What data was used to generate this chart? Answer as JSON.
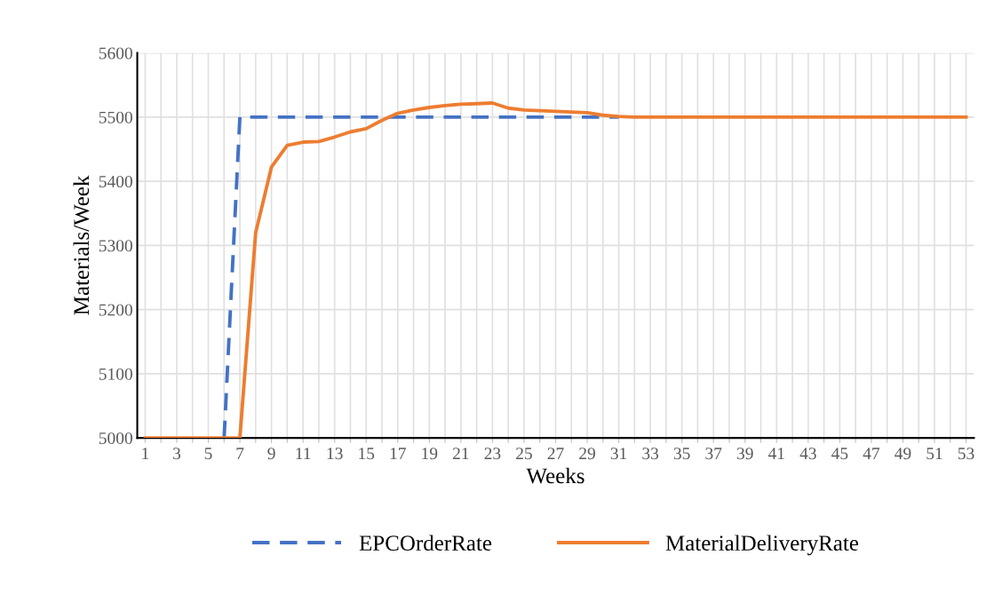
{
  "chart_data": {
    "type": "line",
    "xlabel": "Weeks",
    "ylabel": "Materials/Week",
    "categories": [
      "1",
      null,
      "3",
      null,
      "5",
      null,
      "7",
      null,
      "9",
      null,
      "11",
      null,
      "13",
      null,
      "15",
      null,
      "17",
      null,
      "19",
      null,
      "21",
      null,
      "23",
      null,
      "25",
      null,
      "27",
      null,
      "29",
      null,
      "31",
      null,
      "33",
      null,
      "35",
      null,
      "37",
      null,
      "39",
      null,
      "41",
      null,
      "43",
      null,
      "45",
      null,
      "47",
      null,
      "49",
      null,
      "51",
      null,
      "53"
    ],
    "series": [
      {
        "name": "EPCOrderRate",
        "color": "#4472c4",
        "line_style": "dashed",
        "values": [
          null,
          null,
          null,
          null,
          null,
          5000,
          5500,
          5500,
          5500,
          5500,
          5500,
          5500,
          5500,
          5500,
          5500,
          5500,
          5500,
          5500,
          5500,
          5500,
          5500,
          5500,
          5500,
          5500,
          5500,
          5500,
          5500,
          5500,
          5500,
          5500,
          5500,
          null,
          null,
          null,
          null,
          null,
          null,
          null,
          null,
          null,
          null,
          null,
          null,
          null,
          null,
          null,
          null,
          null,
          null,
          null,
          null,
          null,
          null
        ]
      },
      {
        "name": "MaterialDeliveryRate",
        "color": "#ed7d31",
        "line_style": "solid",
        "values": [
          5000,
          5000,
          5000,
          5000,
          5000,
          5000,
          5000,
          5320,
          5422,
          5456,
          5461,
          5462,
          5469,
          5477,
          5482,
          5495,
          5506,
          5511,
          5515,
          5518,
          5520,
          5521,
          5522,
          5514,
          5511,
          5510,
          5509,
          5508,
          5507,
          5503,
          5501,
          5500,
          5500,
          5500,
          5500,
          5500,
          5500,
          5500,
          5500,
          5500,
          5500,
          5500,
          5500,
          5500,
          5500,
          5500,
          5500,
          5500,
          5500,
          5500,
          5500,
          5500,
          5500
        ]
      }
    ],
    "ylim": [
      5000,
      5600
    ],
    "yticks": [
      5000,
      5100,
      5200,
      5300,
      5400,
      5500,
      5600
    ],
    "grid": true,
    "legend": "bottom",
    "marker": "none"
  }
}
